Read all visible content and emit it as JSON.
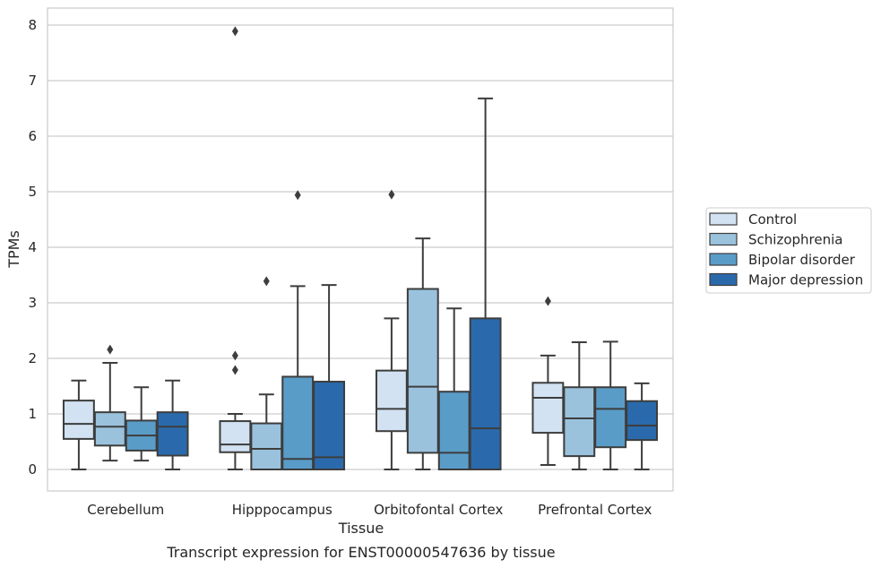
{
  "chart_data": {
    "type": "boxplot",
    "xlabel": "Tissue",
    "ylabel": "TPMs",
    "caption": "Transcript expression for ENST00000547636 by tissue",
    "ylim": [
      -0.4,
      8.3
    ],
    "yticks": [
      0,
      1,
      2,
      3,
      4,
      5,
      6,
      7,
      8
    ],
    "grid": "horizontal",
    "legend_position": "right",
    "categories": [
      "Cerebellum",
      "Hipppocampus",
      "Orbitofontal Cortex",
      "Prefrontal Cortex"
    ],
    "series": [
      {
        "name": "Control",
        "color": "#d2e2f2",
        "boxes": [
          {
            "whislo": 0.0,
            "q1": 0.55,
            "med": 0.82,
            "q3": 1.24,
            "whishi": 1.6,
            "fliers": []
          },
          {
            "whislo": 0.0,
            "q1": 0.31,
            "med": 0.45,
            "q3": 0.87,
            "whishi": 1.0,
            "fliers": [
              7.89,
              2.05,
              1.79
            ]
          },
          {
            "whislo": 0.0,
            "q1": 0.69,
            "med": 1.09,
            "q3": 1.78,
            "whishi": 2.72,
            "fliers": [
              4.95
            ]
          },
          {
            "whislo": 0.08,
            "q1": 0.66,
            "med": 1.29,
            "q3": 1.56,
            "whishi": 2.05,
            "fliers": [
              3.03
            ]
          }
        ]
      },
      {
        "name": "Schizophrenia",
        "color": "#9ac2dd",
        "boxes": [
          {
            "whislo": 0.16,
            "q1": 0.43,
            "med": 0.77,
            "q3": 1.03,
            "whishi": 1.92,
            "fliers": [
              2.16
            ]
          },
          {
            "whislo": 0.0,
            "q1": 0.0,
            "med": 0.37,
            "q3": 0.83,
            "whishi": 1.35,
            "fliers": [
              3.39
            ]
          },
          {
            "whislo": 0.0,
            "q1": 0.3,
            "med": 1.49,
            "q3": 3.25,
            "whishi": 4.16,
            "fliers": []
          },
          {
            "whislo": 0.0,
            "q1": 0.24,
            "med": 0.92,
            "q3": 1.48,
            "whishi": 2.29,
            "fliers": []
          }
        ]
      },
      {
        "name": "Bipolar disorder",
        "color": "#5a9cc8",
        "boxes": [
          {
            "whislo": 0.16,
            "q1": 0.34,
            "med": 0.61,
            "q3": 0.88,
            "whishi": 1.48,
            "fliers": []
          },
          {
            "whislo": 0.0,
            "q1": 0.0,
            "med": 0.19,
            "q3": 1.67,
            "whishi": 3.3,
            "fliers": [
              4.94
            ]
          },
          {
            "whislo": 0.0,
            "q1": 0.0,
            "med": 0.3,
            "q3": 1.4,
            "whishi": 2.9,
            "fliers": []
          },
          {
            "whislo": 0.0,
            "q1": 0.4,
            "med": 1.09,
            "q3": 1.48,
            "whishi": 2.3,
            "fliers": []
          }
        ]
      },
      {
        "name": "Major depression",
        "color": "#2a6aac",
        "boxes": [
          {
            "whislo": 0.0,
            "q1": 0.25,
            "med": 0.77,
            "q3": 1.03,
            "whishi": 1.6,
            "fliers": []
          },
          {
            "whislo": 0.0,
            "q1": 0.0,
            "med": 0.22,
            "q3": 1.58,
            "whishi": 3.32,
            "fliers": []
          },
          {
            "whislo": 0.0,
            "q1": 0.0,
            "med": 0.74,
            "q3": 2.72,
            "whishi": 6.68,
            "fliers": []
          },
          {
            "whislo": 0.0,
            "q1": 0.53,
            "med": 0.79,
            "q3": 1.23,
            "whishi": 1.55,
            "fliers": []
          }
        ]
      }
    ]
  }
}
